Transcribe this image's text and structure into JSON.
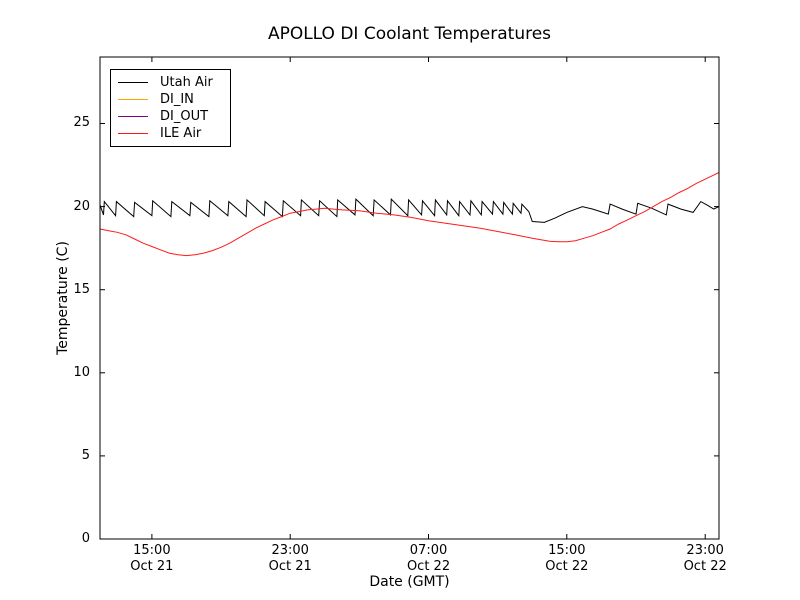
{
  "chart_data": {
    "type": "line",
    "title": "APOLLO DI Coolant Temperatures",
    "xlabel": "Date (GMT)",
    "ylabel": "Temperature (C)",
    "grid": false,
    "legend_position": "upper left",
    "ylim": [
      0,
      29
    ],
    "xlim_hours": [
      0,
      35.8
    ],
    "y_ticks": [
      0,
      5,
      10,
      15,
      20,
      25
    ],
    "x_ticks": [
      {
        "t": 3,
        "time": "15:00",
        "date": "Oct 21"
      },
      {
        "t": 11,
        "time": "23:00",
        "date": "Oct 21"
      },
      {
        "t": 19,
        "time": "07:00",
        "date": "Oct 22"
      },
      {
        "t": 27,
        "time": "15:00",
        "date": "Oct 22"
      },
      {
        "t": 35,
        "time": "23:00",
        "date": "Oct 22"
      }
    ],
    "series": [
      {
        "name": "Utah Air",
        "color": "#000000",
        "points": [
          [
            0,
            20.1
          ],
          [
            0.2,
            19.5
          ],
          [
            0.25,
            20.3
          ],
          [
            0.9,
            19.45
          ],
          [
            0.95,
            20.3
          ],
          [
            1.95,
            19.4
          ],
          [
            2,
            20.25
          ],
          [
            3,
            19.45
          ],
          [
            3.05,
            20.35
          ],
          [
            4.1,
            19.4
          ],
          [
            4.15,
            20.3
          ],
          [
            5.2,
            19.45
          ],
          [
            5.25,
            20.25
          ],
          [
            6.3,
            19.4
          ],
          [
            6.35,
            20.35
          ],
          [
            7.4,
            19.45
          ],
          [
            7.45,
            20.3
          ],
          [
            8.45,
            19.4
          ],
          [
            8.5,
            20.4
          ],
          [
            9.5,
            19.45
          ],
          [
            9.55,
            20.3
          ],
          [
            10.55,
            19.4
          ],
          [
            10.6,
            20.35
          ],
          [
            11.6,
            19.45
          ],
          [
            11.65,
            20.4
          ],
          [
            12.65,
            19.45
          ],
          [
            12.7,
            20.35
          ],
          [
            13.7,
            19.4
          ],
          [
            13.75,
            20.4
          ],
          [
            14.75,
            19.5
          ],
          [
            14.8,
            20.45
          ],
          [
            15.8,
            19.45
          ],
          [
            15.85,
            20.4
          ],
          [
            16.8,
            19.5
          ],
          [
            16.85,
            20.45
          ],
          [
            17.8,
            19.45
          ],
          [
            17.85,
            20.4
          ],
          [
            18.6,
            19.5
          ],
          [
            18.65,
            20.35
          ],
          [
            19.35,
            19.45
          ],
          [
            19.4,
            20.4
          ],
          [
            20.05,
            19.5
          ],
          [
            20.1,
            20.35
          ],
          [
            20.75,
            19.45
          ],
          [
            20.8,
            20.3
          ],
          [
            21.4,
            19.5
          ],
          [
            21.45,
            20.35
          ],
          [
            22.05,
            19.5
          ],
          [
            22.1,
            20.3
          ],
          [
            22.7,
            19.55
          ],
          [
            22.75,
            20.3
          ],
          [
            23.3,
            19.55
          ],
          [
            23.35,
            20.25
          ],
          [
            23.85,
            19.55
          ],
          [
            23.9,
            20.2
          ],
          [
            24.35,
            19.6
          ],
          [
            24.4,
            20.15
          ],
          [
            24.8,
            19.7
          ],
          [
            25,
            19.1
          ],
          [
            25.7,
            19.05
          ],
          [
            26.3,
            19.3
          ],
          [
            27,
            19.65
          ],
          [
            27.9,
            20.0
          ],
          [
            28.5,
            19.85
          ],
          [
            29.4,
            19.55
          ],
          [
            29.5,
            20.15
          ],
          [
            30.2,
            19.85
          ],
          [
            31,
            19.55
          ],
          [
            31.1,
            20.2
          ],
          [
            31.9,
            19.9
          ],
          [
            32.75,
            19.5
          ],
          [
            32.85,
            20.15
          ],
          [
            33.6,
            19.85
          ],
          [
            34.3,
            19.65
          ],
          [
            34.75,
            20.3
          ],
          [
            35.1,
            20.1
          ],
          [
            35.5,
            19.85
          ],
          [
            35.8,
            20.0
          ]
        ]
      },
      {
        "name": "DI_IN",
        "color": "#ffa500",
        "points": []
      },
      {
        "name": "DI_OUT",
        "color": "#800080",
        "points": []
      },
      {
        "name": "ILE Air",
        "color": "#ff1a1a",
        "points": [
          [
            0,
            18.65
          ],
          [
            0.5,
            18.55
          ],
          [
            1,
            18.45
          ],
          [
            1.5,
            18.3
          ],
          [
            2,
            18.05
          ],
          [
            2.5,
            17.8
          ],
          [
            3,
            17.6
          ],
          [
            3.5,
            17.4
          ],
          [
            4,
            17.2
          ],
          [
            4.5,
            17.1
          ],
          [
            5,
            17.05
          ],
          [
            5.5,
            17.1
          ],
          [
            6,
            17.2
          ],
          [
            6.5,
            17.35
          ],
          [
            7,
            17.55
          ],
          [
            7.5,
            17.8
          ],
          [
            8,
            18.1
          ],
          [
            8.5,
            18.4
          ],
          [
            9,
            18.7
          ],
          [
            9.5,
            18.95
          ],
          [
            10,
            19.2
          ],
          [
            10.5,
            19.4
          ],
          [
            11,
            19.6
          ],
          [
            11.5,
            19.7
          ],
          [
            12,
            19.8
          ],
          [
            12.5,
            19.85
          ],
          [
            13,
            19.9
          ],
          [
            13.5,
            19.85
          ],
          [
            14,
            19.8
          ],
          [
            15,
            19.75
          ],
          [
            16,
            19.6
          ],
          [
            17,
            19.5
          ],
          [
            18,
            19.35
          ],
          [
            19,
            19.15
          ],
          [
            20,
            19.0
          ],
          [
            21,
            18.85
          ],
          [
            22,
            18.7
          ],
          [
            23,
            18.5
          ],
          [
            24,
            18.3
          ],
          [
            25,
            18.1
          ],
          [
            25.5,
            18.0
          ],
          [
            26,
            17.92
          ],
          [
            26.5,
            17.88
          ],
          [
            27,
            17.88
          ],
          [
            27.5,
            17.95
          ],
          [
            28,
            18.1
          ],
          [
            28.5,
            18.25
          ],
          [
            29,
            18.45
          ],
          [
            29.5,
            18.65
          ],
          [
            30,
            18.95
          ],
          [
            30.5,
            19.2
          ],
          [
            31,
            19.45
          ],
          [
            31.5,
            19.7
          ],
          [
            32,
            20.0
          ],
          [
            32.5,
            20.3
          ],
          [
            33,
            20.55
          ],
          [
            33.5,
            20.85
          ],
          [
            34,
            21.1
          ],
          [
            34.5,
            21.4
          ],
          [
            35,
            21.65
          ],
          [
            35.4,
            21.85
          ],
          [
            35.8,
            22.05
          ]
        ]
      }
    ]
  }
}
